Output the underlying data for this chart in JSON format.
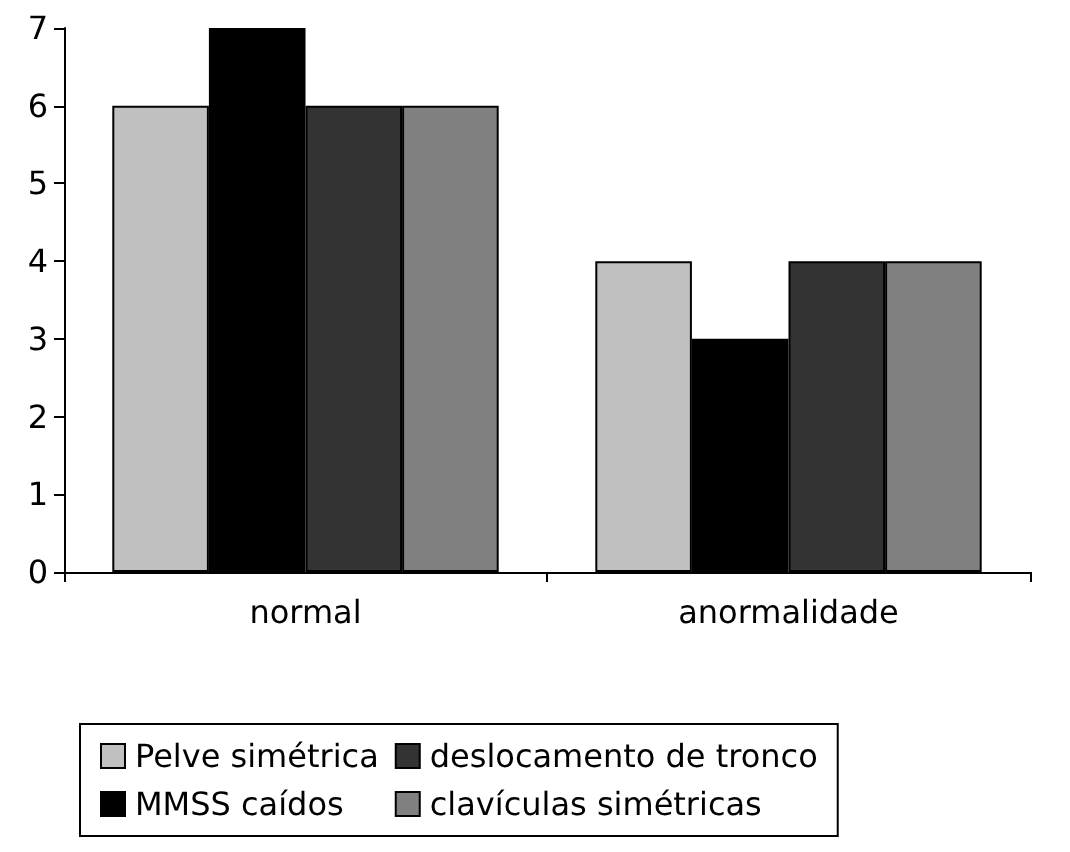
{
  "chart_data": {
    "type": "bar",
    "categories": [
      "normal",
      "anormalidade"
    ],
    "series": [
      {
        "name": "Pelve simétrica",
        "color": "#c0c0c0",
        "values": [
          6,
          4
        ]
      },
      {
        "name": "MMSS caídos",
        "color": "#000000",
        "values": [
          7,
          3
        ]
      },
      {
        "name": "deslocamento de tronco",
        "color": "#333333",
        "values": [
          6,
          4
        ]
      },
      {
        "name": "clavículas simétricas",
        "color": "#808080",
        "values": [
          6,
          4
        ]
      }
    ],
    "ylim": [
      0,
      7
    ],
    "yticks": [
      0,
      1,
      2,
      3,
      4,
      5,
      6,
      7
    ],
    "grid": false,
    "legend": "bottom"
  }
}
